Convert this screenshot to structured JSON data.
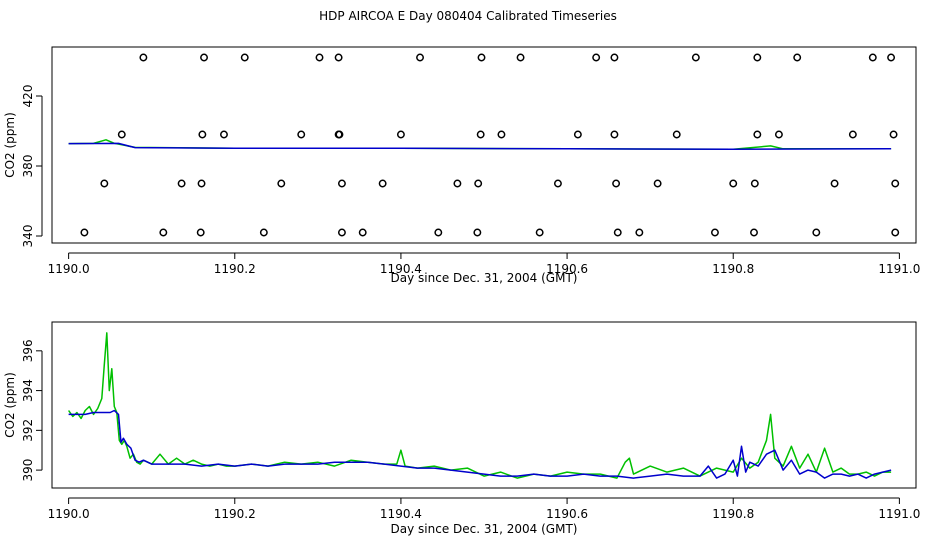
{
  "figure": {
    "title": "HDP AIRCOA E  Day 080404  Calibrated Timeseries"
  },
  "chart_data": [
    {
      "type": "line",
      "xlabel": "Day since Dec. 31, 2004 (GMT)",
      "ylabel": "CO2 (ppm)",
      "xlim": [
        1189.98,
        1191.02
      ],
      "ylim": [
        336,
        448
      ],
      "xticks": [
        "1190.0",
        "1190.2",
        "1190.4",
        "1190.6",
        "1190.8",
        "1191.0"
      ],
      "yticks": [
        "340",
        "380",
        "420"
      ],
      "grid": false,
      "colors": {
        "green": "#00c000",
        "blue": "#0000cc",
        "marker": "#000000"
      },
      "series": [
        {
          "color": "green",
          "x": [
            1190.0,
            1190.03,
            1190.045,
            1190.055,
            1190.08,
            1190.2,
            1190.4,
            1190.6,
            1190.8,
            1190.845,
            1190.86,
            1190.99
          ],
          "y": [
            392.8,
            392.9,
            395,
            393,
            390.6,
            390.2,
            390.2,
            389.8,
            389.6,
            391.5,
            389.8,
            389.8
          ]
        },
        {
          "color": "blue",
          "x": [
            1190.0,
            1190.06,
            1190.08,
            1190.2,
            1190.4,
            1190.6,
            1190.8,
            1190.99
          ],
          "y": [
            392.8,
            392.9,
            390.5,
            390.2,
            390.1,
            389.8,
            389.6,
            389.8
          ]
        }
      ],
      "markers": {
        "symbol": "open-circle",
        "points": [
          [
            1190.09,
            442
          ],
          [
            1190.163,
            442
          ],
          [
            1190.212,
            442
          ],
          [
            1190.302,
            442
          ],
          [
            1190.325,
            442
          ],
          [
            1190.423,
            442
          ],
          [
            1190.497,
            442
          ],
          [
            1190.544,
            442
          ],
          [
            1190.635,
            442
          ],
          [
            1190.657,
            442
          ],
          [
            1190.755,
            442
          ],
          [
            1190.829,
            442
          ],
          [
            1190.877,
            442
          ],
          [
            1190.968,
            442
          ],
          [
            1190.99,
            442
          ],
          [
            1190.064,
            398
          ],
          [
            1190.161,
            398
          ],
          [
            1190.187,
            398
          ],
          [
            1190.28,
            398
          ],
          [
            1190.325,
            398
          ],
          [
            1190.326,
            398
          ],
          [
            1190.4,
            398
          ],
          [
            1190.496,
            398
          ],
          [
            1190.521,
            398
          ],
          [
            1190.613,
            398
          ],
          [
            1190.657,
            398
          ],
          [
            1190.732,
            398
          ],
          [
            1190.829,
            398
          ],
          [
            1190.855,
            398
          ],
          [
            1190.944,
            398
          ],
          [
            1190.993,
            398
          ],
          [
            1190.043,
            370
          ],
          [
            1190.136,
            370
          ],
          [
            1190.16,
            370
          ],
          [
            1190.256,
            370
          ],
          [
            1190.329,
            370
          ],
          [
            1190.378,
            370
          ],
          [
            1190.468,
            370
          ],
          [
            1190.493,
            370
          ],
          [
            1190.589,
            370
          ],
          [
            1190.659,
            370
          ],
          [
            1190.709,
            370
          ],
          [
            1190.8,
            370
          ],
          [
            1190.826,
            370
          ],
          [
            1190.922,
            370
          ],
          [
            1190.995,
            370
          ],
          [
            1190.019,
            342
          ],
          [
            1190.114,
            342
          ],
          [
            1190.159,
            342
          ],
          [
            1190.235,
            342
          ],
          [
            1190.329,
            342
          ],
          [
            1190.354,
            342
          ],
          [
            1190.445,
            342
          ],
          [
            1190.492,
            342
          ],
          [
            1190.567,
            342
          ],
          [
            1190.661,
            342
          ],
          [
            1190.687,
            342
          ],
          [
            1190.778,
            342
          ],
          [
            1190.825,
            342
          ],
          [
            1190.9,
            342
          ],
          [
            1190.995,
            342
          ]
        ]
      }
    },
    {
      "type": "line",
      "xlabel": "Day since Dec. 31, 2004 (GMT)",
      "ylabel": "CO2 (ppm)",
      "xlim": [
        1189.98,
        1191.02
      ],
      "ylim": [
        389.1,
        397.45
      ],
      "xticks": [
        "1190.0",
        "1190.2",
        "1190.4",
        "1190.6",
        "1190.8",
        "1191.0"
      ],
      "yticks": [
        "390",
        "392",
        "394",
        "396"
      ],
      "grid": false,
      "colors": {
        "green": "#00c000",
        "blue": "#0000cc"
      },
      "series": [
        {
          "color": "green",
          "x": [
            1190.0,
            1190.005,
            1190.01,
            1190.015,
            1190.02,
            1190.025,
            1190.03,
            1190.035,
            1190.04,
            1190.043,
            1190.046,
            1190.049,
            1190.052,
            1190.055,
            1190.058,
            1190.061,
            1190.064,
            1190.067,
            1190.07,
            1190.074,
            1190.078,
            1190.082,
            1190.086,
            1190.09,
            1190.1,
            1190.11,
            1190.12,
            1190.13,
            1190.14,
            1190.15,
            1190.16,
            1190.17,
            1190.18,
            1190.19,
            1190.2,
            1190.22,
            1190.24,
            1190.26,
            1190.28,
            1190.3,
            1190.32,
            1190.34,
            1190.36,
            1190.38,
            1190.395,
            1190.4,
            1190.405,
            1190.42,
            1190.44,
            1190.46,
            1190.48,
            1190.5,
            1190.52,
            1190.54,
            1190.56,
            1190.58,
            1190.6,
            1190.62,
            1190.64,
            1190.66,
            1190.67,
            1190.675,
            1190.68,
            1190.7,
            1190.72,
            1190.74,
            1190.76,
            1190.78,
            1190.8,
            1190.81,
            1190.82,
            1190.83,
            1190.84,
            1190.845,
            1190.85,
            1190.86,
            1190.87,
            1190.88,
            1190.89,
            1190.9,
            1190.91,
            1190.92,
            1190.93,
            1190.94,
            1190.95,
            1190.96,
            1190.97,
            1190.98,
            1190.99
          ],
          "y": [
            393.0,
            392.7,
            392.9,
            392.6,
            393.0,
            393.2,
            392.8,
            393.1,
            393.6,
            395.3,
            396.9,
            394.0,
            395.1,
            393.2,
            392.9,
            391.5,
            391.3,
            391.5,
            391.2,
            390.6,
            390.8,
            390.4,
            390.3,
            390.5,
            390.3,
            390.8,
            390.3,
            390.6,
            390.3,
            390.5,
            390.3,
            390.2,
            390.3,
            390.2,
            390.2,
            390.3,
            390.2,
            390.4,
            390.3,
            390.4,
            390.2,
            390.5,
            390.4,
            390.3,
            390.3,
            391.0,
            390.2,
            390.1,
            390.2,
            390.0,
            390.1,
            389.7,
            389.9,
            389.6,
            389.8,
            389.7,
            389.9,
            389.8,
            389.8,
            389.6,
            390.4,
            390.6,
            389.8,
            390.2,
            389.9,
            390.1,
            389.7,
            390.1,
            389.9,
            390.6,
            390.1,
            390.4,
            391.5,
            392.8,
            390.6,
            390.2,
            391.2,
            390.1,
            390.8,
            389.9,
            391.1,
            389.9,
            390.1,
            389.8,
            389.8,
            389.9,
            389.7,
            389.9,
            389.9
          ]
        },
        {
          "color": "blue",
          "x": [
            1190.0,
            1190.01,
            1190.02,
            1190.03,
            1190.04,
            1190.05,
            1190.055,
            1190.06,
            1190.063,
            1190.066,
            1190.07,
            1190.075,
            1190.08,
            1190.085,
            1190.09,
            1190.1,
            1190.12,
            1190.14,
            1190.16,
            1190.18,
            1190.2,
            1190.22,
            1190.24,
            1190.26,
            1190.28,
            1190.3,
            1190.32,
            1190.34,
            1190.36,
            1190.38,
            1190.4,
            1190.42,
            1190.44,
            1190.46,
            1190.48,
            1190.5,
            1190.52,
            1190.54,
            1190.56,
            1190.58,
            1190.6,
            1190.62,
            1190.64,
            1190.66,
            1190.68,
            1190.7,
            1190.72,
            1190.74,
            1190.76,
            1190.77,
            1190.78,
            1190.79,
            1190.8,
            1190.805,
            1190.81,
            1190.815,
            1190.82,
            1190.83,
            1190.84,
            1190.85,
            1190.86,
            1190.87,
            1190.88,
            1190.89,
            1190.9,
            1190.91,
            1190.92,
            1190.93,
            1190.94,
            1190.95,
            1190.96,
            1190.97,
            1190.98,
            1190.99
          ],
          "y": [
            392.8,
            392.8,
            392.8,
            392.9,
            392.9,
            392.9,
            393.0,
            392.8,
            391.4,
            391.6,
            391.3,
            391.1,
            390.5,
            390.4,
            390.5,
            390.3,
            390.3,
            390.3,
            390.2,
            390.3,
            390.2,
            390.3,
            390.2,
            390.3,
            390.3,
            390.3,
            390.4,
            390.4,
            390.4,
            390.3,
            390.2,
            390.1,
            390.1,
            390.0,
            389.9,
            389.8,
            389.7,
            389.7,
            389.8,
            389.7,
            389.7,
            389.8,
            389.7,
            389.7,
            389.6,
            389.7,
            389.8,
            389.7,
            389.7,
            390.2,
            389.6,
            389.8,
            390.5,
            389.7,
            391.2,
            389.9,
            390.4,
            390.2,
            390.8,
            391.0,
            390.0,
            390.5,
            389.8,
            390.0,
            389.9,
            389.6,
            389.8,
            389.8,
            389.7,
            389.8,
            389.6,
            389.8,
            389.9,
            390.0
          ]
        }
      ]
    }
  ]
}
